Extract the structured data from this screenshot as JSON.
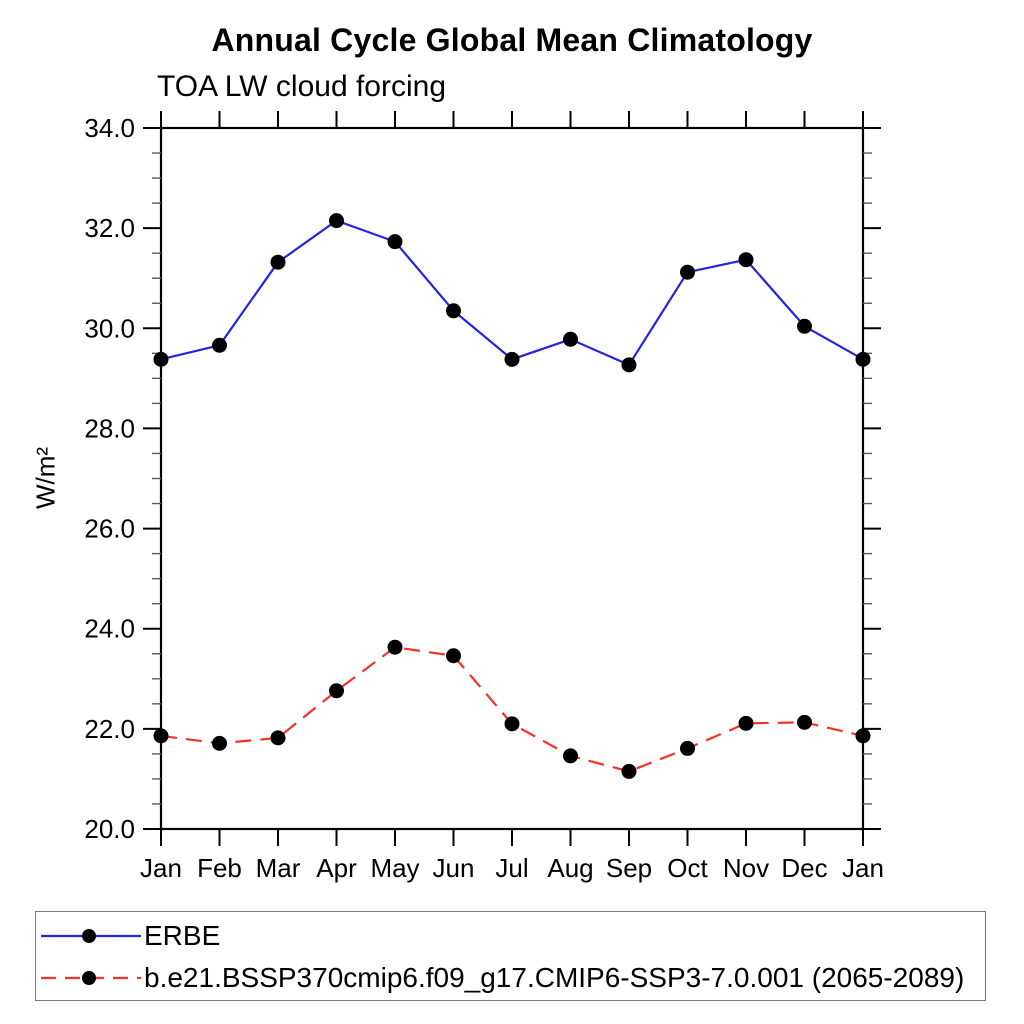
{
  "chart_data": {
    "type": "line",
    "title": "Annual Cycle Global Mean Climatology",
    "subtitle": "TOA LW cloud forcing",
    "ylabel": "W/m²",
    "xlabel": "",
    "x_categories": [
      "Jan",
      "Feb",
      "Mar",
      "Apr",
      "May",
      "Jun",
      "Jul",
      "Aug",
      "Sep",
      "Oct",
      "Nov",
      "Dec",
      "Jan"
    ],
    "y_axis": {
      "min": 20.0,
      "max": 34.0,
      "major_step": 2.0,
      "minor_step": 0.5,
      "tick_labels": [
        "20.0",
        "22.0",
        "24.0",
        "26.0",
        "28.0",
        "30.0",
        "32.0",
        "34.0"
      ]
    },
    "grid": false,
    "legend_position": "bottom",
    "axis_color": "#000000",
    "minor_tick_color": "#5a5a5a",
    "series": [
      {
        "name": "ERBE",
        "color": "#2323e0",
        "line_style": "solid",
        "marker": "filled-circle",
        "marker_color": "#000000",
        "values": [
          29.38,
          29.66,
          31.32,
          32.15,
          31.73,
          30.35,
          29.38,
          29.78,
          29.27,
          31.12,
          31.37,
          30.04,
          29.38
        ]
      },
      {
        "name": "b.e21.BSSP370cmip6.f09_g17.CMIP6-SSP3-7.0.001 (2065-2089)",
        "color": "#f53228",
        "line_style": "dashed",
        "marker": "filled-circle",
        "marker_color": "#000000",
        "values": [
          21.86,
          21.71,
          21.82,
          22.76,
          23.63,
          23.46,
          22.1,
          21.46,
          21.15,
          21.61,
          22.11,
          22.13,
          21.86
        ]
      }
    ]
  }
}
